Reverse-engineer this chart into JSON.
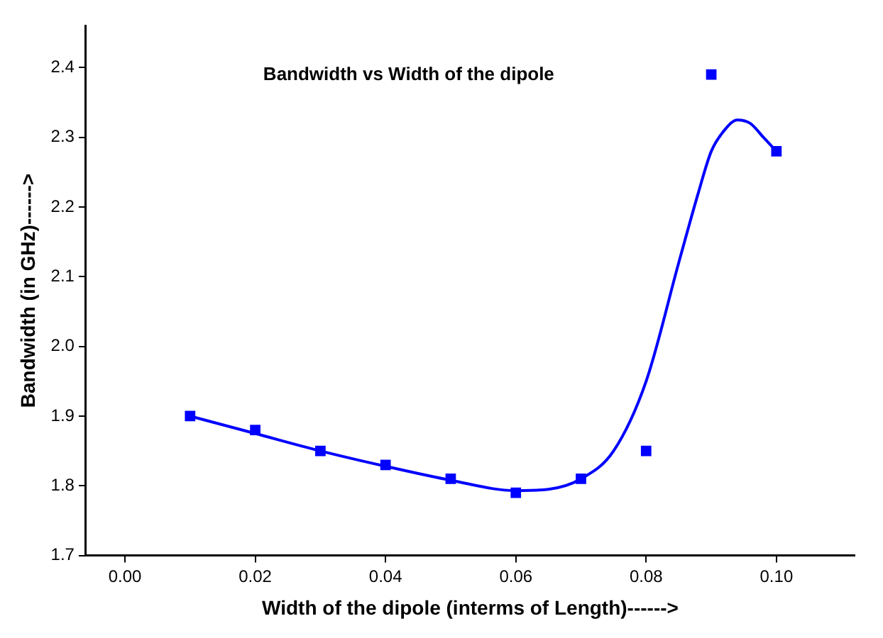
{
  "chart_data": {
    "type": "scatter",
    "title": "Bandwidth vs Width of the dipole",
    "xlabel": "Width of the dipole (interms of Length)------>",
    "ylabel": "Bandwidth (in GHz)------>",
    "x": [
      0.01,
      0.02,
      0.03,
      0.04,
      0.05,
      0.06,
      0.07,
      0.08,
      0.09,
      0.1
    ],
    "series": [
      {
        "color": "#0000ff",
        "marker": "square",
        "values": [
          1.9,
          1.88,
          1.85,
          1.83,
          1.81,
          1.79,
          1.81,
          1.85,
          2.39,
          2.28
        ]
      },
      {
        "type": "line",
        "color": "#0000ff",
        "marker": "none",
        "line_style": "solid",
        "x": [
          0.01,
          0.02,
          0.03,
          0.04,
          0.05,
          0.06,
          0.065,
          0.07,
          0.075,
          0.08,
          0.085,
          0.088,
          0.09,
          0.092,
          0.094,
          0.096,
          0.098,
          0.1
        ],
        "values": [
          1.9,
          1.875,
          1.85,
          1.828,
          1.808,
          1.793,
          1.795,
          1.81,
          1.85,
          1.95,
          2.12,
          2.22,
          2.28,
          2.31,
          2.325,
          2.32,
          2.3,
          2.28
        ]
      }
    ],
    "xlim": [
      -0.006,
      0.112
    ],
    "xticks": [
      {
        "value": 0,
        "label": "0.00"
      },
      {
        "value": 0.02,
        "label": "0.02"
      },
      {
        "value": 0.04,
        "label": "0.04"
      },
      {
        "value": 0.06,
        "label": "0.06"
      },
      {
        "value": 0.08,
        "label": "0.08"
      },
      {
        "value": 0.1,
        "label": "0.10"
      }
    ],
    "ylim": [
      1.7,
      2.46
    ],
    "yticks": [
      {
        "value": 1.7,
        "label": "1.7"
      },
      {
        "value": 1.8,
        "label": "1.8"
      },
      {
        "value": 1.9,
        "label": "1.9"
      },
      {
        "value": 2.0,
        "label": "2.0"
      },
      {
        "value": 2.1,
        "label": "2.1"
      },
      {
        "value": 2.2,
        "label": "2.2"
      },
      {
        "value": 2.3,
        "label": "2.3"
      },
      {
        "value": 2.4,
        "label": "2.4"
      }
    ],
    "grid": false,
    "legend": false
  }
}
